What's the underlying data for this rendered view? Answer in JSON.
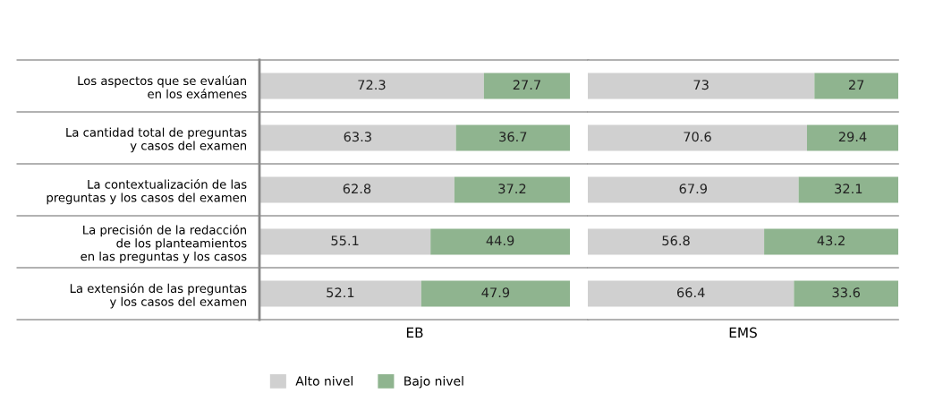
{
  "chart_data": [
    {
      "type": "bar",
      "orientation": "horizontal",
      "stacked": true,
      "data_labels": true,
      "xlabel": "EB",
      "legend": "bottom",
      "tick_labels": "y",
      "categories": [
        "Los aspectos que se evalúan\nen los exámenes",
        "La cantidad total de preguntas\ny casos del examen",
        "La contextualización de las\npreguntas y los casos del examen",
        "La precisión de la redacción\nde los planteamientos\nen las preguntas y los casos",
        "La extensión de las preguntas\ny los casos del examen"
      ],
      "series": [
        {
          "name": "Alto nivel",
          "color": "#d0d0d0",
          "values": [
            72.3,
            63.3,
            62.8,
            55.1,
            52.1
          ]
        },
        {
          "name": "Bajo nivel",
          "color": "#8fb48f",
          "values": [
            27.7,
            36.7,
            37.2,
            44.9,
            47.9
          ]
        }
      ]
    },
    {
      "type": "bar",
      "orientation": "horizontal",
      "stacked": true,
      "data_labels": true,
      "xlabel": "EMS",
      "tick_labels": false,
      "categories": [
        null,
        null,
        null,
        null,
        null
      ],
      "series": [
        {
          "color": "#d0d0d0",
          "values": [
            73,
            70.6,
            67.9,
            56.8,
            66.4
          ]
        },
        {
          "color": "#8fb48f",
          "values": [
            27,
            29.4,
            32.1,
            43.2,
            33.6
          ]
        }
      ]
    }
  ]
}
